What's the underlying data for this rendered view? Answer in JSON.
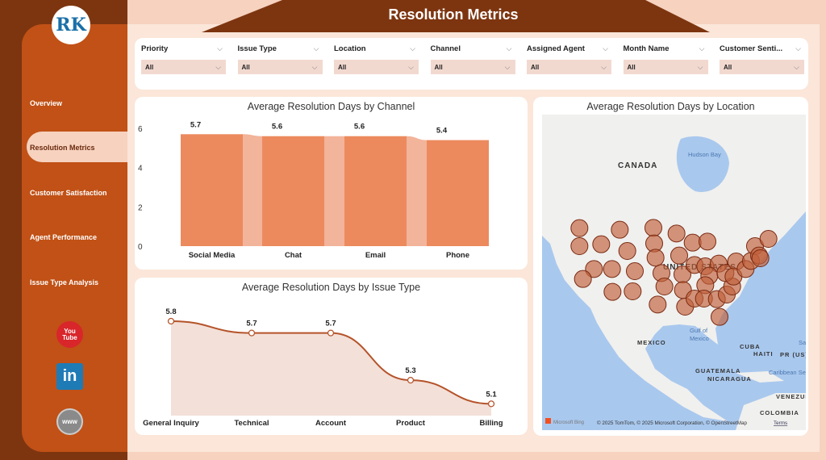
{
  "header": {
    "title": "Resolution Metrics"
  },
  "sidebar": {
    "logo": "RK",
    "items": [
      {
        "label": "Overview"
      },
      {
        "label": "Resolution Metrics",
        "active": true
      },
      {
        "label": "Customer Satisfaction"
      },
      {
        "label": "Agent Performance"
      },
      {
        "label": "Issue Type Analysis"
      }
    ],
    "social": [
      {
        "icon": "youtube-icon",
        "label": "You Tube"
      },
      {
        "icon": "linkedin-icon",
        "label": "in"
      },
      {
        "icon": "globe-icon",
        "label": "www"
      }
    ]
  },
  "filters": [
    {
      "label": "Priority",
      "value": "All"
    },
    {
      "label": "Issue Type",
      "value": "All"
    },
    {
      "label": "Location",
      "value": "All"
    },
    {
      "label": "Channel",
      "value": "All"
    },
    {
      "label": "Assigned Agent",
      "value": "All"
    },
    {
      "label": "Month Name",
      "value": "All"
    },
    {
      "label": "Customer Senti...",
      "value": "All"
    }
  ],
  "colors": {
    "sidebar": "#c15116",
    "dark": "#7d3510",
    "bar": "#ec8a5e",
    "ribbon": "#f2b49a",
    "line": "#b5532a",
    "area": "#f3e0d8",
    "bubble": "#c0603a"
  },
  "chart_data": [
    {
      "type": "bar",
      "title": "Average Resolution Days by Channel",
      "categories": [
        "Social Media",
        "Chat",
        "Email",
        "Phone"
      ],
      "values": [
        5.7,
        5.6,
        5.6,
        5.4
      ],
      "data_labels": [
        "5.7",
        "5.6",
        "5.6",
        "5.4"
      ],
      "yticks": [
        "0",
        "2",
        "4",
        "6"
      ],
      "ylim": [
        0,
        6
      ],
      "grid": false
    },
    {
      "type": "area",
      "title": "Average Resolution Days by Issue Type",
      "categories": [
        "General Inquiry",
        "Technical",
        "Account",
        "Product",
        "Billing"
      ],
      "values": [
        5.8,
        5.7,
        5.7,
        5.3,
        5.1
      ],
      "data_labels": [
        "5.8",
        "5.7",
        "5.7",
        "5.3",
        "5.1"
      ],
      "ylim": [
        5.0,
        5.8
      ],
      "grid": false
    }
  ],
  "map": {
    "title": "Average Resolution Days by Location",
    "labels": [
      "CANADA",
      "Hudson Bay",
      "UNITED STATES",
      "Gulf of Mexico",
      "MEXICO",
      "CUBA",
      "HAITI",
      "PR (US)",
      "Caribbean Sea",
      "Sargasso",
      "GUATEMALA",
      "NICARAGUA",
      "VENEZUELA",
      "COLOMBIA"
    ],
    "brand": "Microsoft Bing",
    "attribution": "© 2025 TomTom, © 2025 Microsoft Corporation, © OpenStreetMap",
    "terms": "Terms"
  }
}
